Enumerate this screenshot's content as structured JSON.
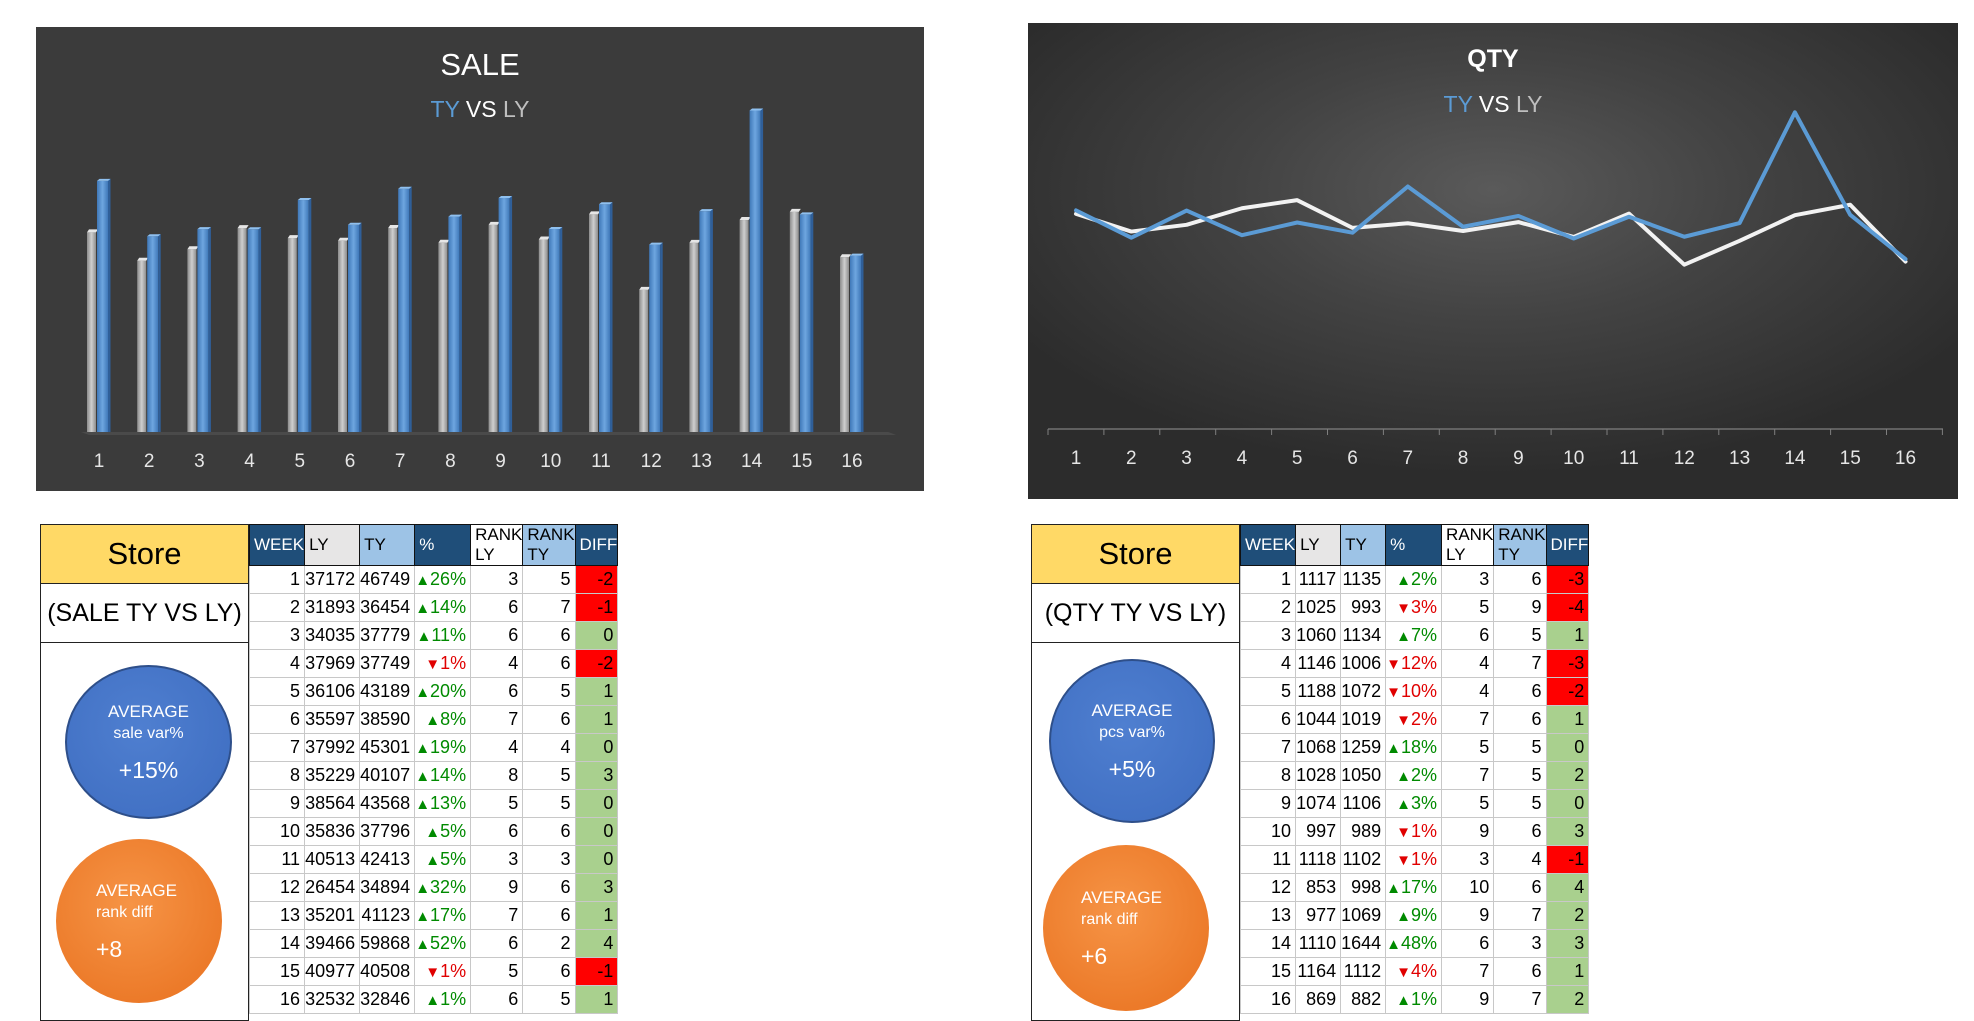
{
  "colors": {
    "ty": "#5b9bd5",
    "ly": "#bfbfbf",
    "qty_ly": "#f2f2f2",
    "diff_negative": "#ff0000",
    "diff_positive": "#a9d08e",
    "pct_up": "#008a00",
    "pct_down": "#e00000"
  },
  "chart_data": [
    {
      "type": "bar",
      "title": "SALE",
      "subtitle_parts": [
        "TY",
        " VS ",
        "LY"
      ],
      "categories": [
        "1",
        "2",
        "3",
        "4",
        "5",
        "6",
        "7",
        "8",
        "9",
        "10",
        "11",
        "12",
        "13",
        "14",
        "15",
        "16"
      ],
      "series": [
        {
          "name": "LY",
          "values": [
            37172,
            31893,
            34035,
            37969,
            36106,
            35597,
            37992,
            35229,
            38564,
            35836,
            40513,
            26454,
            35201,
            39466,
            40977,
            32532
          ]
        },
        {
          "name": "TY",
          "values": [
            46749,
            36454,
            37779,
            37749,
            43189,
            38590,
            45301,
            40107,
            43568,
            37796,
            42413,
            34894,
            41123,
            59868,
            40508,
            32846
          ]
        }
      ],
      "ylim": [
        0,
        62000
      ],
      "grid": false
    },
    {
      "type": "line",
      "title": "QTY",
      "subtitle_parts": [
        "TY",
        " VS ",
        "LY"
      ],
      "categories": [
        "1",
        "2",
        "3",
        "4",
        "5",
        "6",
        "7",
        "8",
        "9",
        "10",
        "11",
        "12",
        "13",
        "14",
        "15",
        "16"
      ],
      "series": [
        {
          "name": "LY",
          "values": [
            1117,
            1025,
            1060,
            1146,
            1188,
            1044,
            1068,
            1028,
            1074,
            997,
            1118,
            853,
            977,
            1110,
            1164,
            869
          ]
        },
        {
          "name": "TY",
          "values": [
            1135,
            993,
            1134,
            1006,
            1072,
            1019,
            1259,
            1050,
            1106,
            989,
            1102,
            998,
            1069,
            1644,
            1112,
            882
          ]
        }
      ],
      "ylim": [
        0,
        1900
      ],
      "grid": false
    }
  ],
  "sale_panel": {
    "store_title": "Store",
    "store_sub": "(SALE TY VS LY)",
    "avg1": {
      "l1": "AVERAGE",
      "l2": "sale var%",
      "value": "+15%"
    },
    "avg2": {
      "l1": "AVERAGE",
      "l2": "rank diff",
      "value": "+8"
    },
    "headers": [
      "WEEK",
      "LY",
      "TY",
      "%",
      "RANK LY",
      "RANK TY",
      "DIFF"
    ],
    "rows": [
      {
        "week": "1",
        "ly": "37172",
        "ty": "46749",
        "dir": "up",
        "pct": "26%",
        "rank_ly": "3",
        "rank_ty": "5",
        "diff": "-2"
      },
      {
        "week": "2",
        "ly": "31893",
        "ty": "36454",
        "dir": "up",
        "pct": "14%",
        "rank_ly": "6",
        "rank_ty": "7",
        "diff": "-1"
      },
      {
        "week": "3",
        "ly": "34035",
        "ty": "37779",
        "dir": "up",
        "pct": "11%",
        "rank_ly": "6",
        "rank_ty": "6",
        "diff": "0"
      },
      {
        "week": "4",
        "ly": "37969",
        "ty": "37749",
        "dir": "down",
        "pct": "1%",
        "rank_ly": "4",
        "rank_ty": "6",
        "diff": "-2"
      },
      {
        "week": "5",
        "ly": "36106",
        "ty": "43189",
        "dir": "up",
        "pct": "20%",
        "rank_ly": "6",
        "rank_ty": "5",
        "diff": "1"
      },
      {
        "week": "6",
        "ly": "35597",
        "ty": "38590",
        "dir": "up",
        "pct": "8%",
        "rank_ly": "7",
        "rank_ty": "6",
        "diff": "1"
      },
      {
        "week": "7",
        "ly": "37992",
        "ty": "45301",
        "dir": "up",
        "pct": "19%",
        "rank_ly": "4",
        "rank_ty": "4",
        "diff": "0"
      },
      {
        "week": "8",
        "ly": "35229",
        "ty": "40107",
        "dir": "up",
        "pct": "14%",
        "rank_ly": "8",
        "rank_ty": "5",
        "diff": "3"
      },
      {
        "week": "9",
        "ly": "38564",
        "ty": "43568",
        "dir": "up",
        "pct": "13%",
        "rank_ly": "5",
        "rank_ty": "5",
        "diff": "0"
      },
      {
        "week": "10",
        "ly": "35836",
        "ty": "37796",
        "dir": "up",
        "pct": "5%",
        "rank_ly": "6",
        "rank_ty": "6",
        "diff": "0"
      },
      {
        "week": "11",
        "ly": "40513",
        "ty": "42413",
        "dir": "up",
        "pct": "5%",
        "rank_ly": "3",
        "rank_ty": "3",
        "diff": "0"
      },
      {
        "week": "12",
        "ly": "26454",
        "ty": "34894",
        "dir": "up",
        "pct": "32%",
        "rank_ly": "9",
        "rank_ty": "6",
        "diff": "3"
      },
      {
        "week": "13",
        "ly": "35201",
        "ty": "41123",
        "dir": "up",
        "pct": "17%",
        "rank_ly": "7",
        "rank_ty": "6",
        "diff": "1"
      },
      {
        "week": "14",
        "ly": "39466",
        "ty": "59868",
        "dir": "up",
        "pct": "52%",
        "rank_ly": "6",
        "rank_ty": "2",
        "diff": "4"
      },
      {
        "week": "15",
        "ly": "40977",
        "ty": "40508",
        "dir": "down",
        "pct": "1%",
        "rank_ly": "5",
        "rank_ty": "6",
        "diff": "-1"
      },
      {
        "week": "16",
        "ly": "32532",
        "ty": "32846",
        "dir": "up",
        "pct": "1%",
        "rank_ly": "6",
        "rank_ty": "5",
        "diff": "1"
      }
    ]
  },
  "qty_panel": {
    "store_title": "Store",
    "store_sub": "(QTY TY VS LY)",
    "avg1": {
      "l1": "AVERAGE",
      "l2": "pcs var%",
      "value": "+5%"
    },
    "avg2": {
      "l1": "AVERAGE",
      "l2": "rank diff",
      "value": "+6"
    },
    "headers": [
      "WEEK",
      "LY",
      "TY",
      "%",
      "RANK LY",
      "RANK TY",
      "DIFF"
    ],
    "rows": [
      {
        "week": "1",
        "ly": "1117",
        "ty": "1135",
        "dir": "up",
        "pct": "2%",
        "rank_ly": "3",
        "rank_ty": "6",
        "diff": "-3"
      },
      {
        "week": "2",
        "ly": "1025",
        "ty": "993",
        "dir": "down",
        "pct": "3%",
        "rank_ly": "5",
        "rank_ty": "9",
        "diff": "-4"
      },
      {
        "week": "3",
        "ly": "1060",
        "ty": "1134",
        "dir": "up",
        "pct": "7%",
        "rank_ly": "6",
        "rank_ty": "5",
        "diff": "1"
      },
      {
        "week": "4",
        "ly": "1146",
        "ty": "1006",
        "dir": "down",
        "pct": "12%",
        "rank_ly": "4",
        "rank_ty": "7",
        "diff": "-3"
      },
      {
        "week": "5",
        "ly": "1188",
        "ty": "1072",
        "dir": "down",
        "pct": "10%",
        "rank_ly": "4",
        "rank_ty": "6",
        "diff": "-2"
      },
      {
        "week": "6",
        "ly": "1044",
        "ty": "1019",
        "dir": "down",
        "pct": "2%",
        "rank_ly": "7",
        "rank_ty": "6",
        "diff": "1"
      },
      {
        "week": "7",
        "ly": "1068",
        "ty": "1259",
        "dir": "up",
        "pct": "18%",
        "rank_ly": "5",
        "rank_ty": "5",
        "diff": "0"
      },
      {
        "week": "8",
        "ly": "1028",
        "ty": "1050",
        "dir": "up",
        "pct": "2%",
        "rank_ly": "7",
        "rank_ty": "5",
        "diff": "2"
      },
      {
        "week": "9",
        "ly": "1074",
        "ty": "1106",
        "dir": "up",
        "pct": "3%",
        "rank_ly": "5",
        "rank_ty": "5",
        "diff": "0"
      },
      {
        "week": "10",
        "ly": "997",
        "ty": "989",
        "dir": "down",
        "pct": "1%",
        "rank_ly": "9",
        "rank_ty": "6",
        "diff": "3"
      },
      {
        "week": "11",
        "ly": "1118",
        "ty": "1102",
        "dir": "down",
        "pct": "1%",
        "rank_ly": "3",
        "rank_ty": "4",
        "diff": "-1"
      },
      {
        "week": "12",
        "ly": "853",
        "ty": "998",
        "dir": "up",
        "pct": "17%",
        "rank_ly": "10",
        "rank_ty": "6",
        "diff": "4"
      },
      {
        "week": "13",
        "ly": "977",
        "ty": "1069",
        "dir": "up",
        "pct": "9%",
        "rank_ly": "9",
        "rank_ty": "7",
        "diff": "2"
      },
      {
        "week": "14",
        "ly": "1110",
        "ty": "1644",
        "dir": "up",
        "pct": "48%",
        "rank_ly": "6",
        "rank_ty": "3",
        "diff": "3"
      },
      {
        "week": "15",
        "ly": "1164",
        "ty": "1112",
        "dir": "down",
        "pct": "4%",
        "rank_ly": "7",
        "rank_ty": "6",
        "diff": "1"
      },
      {
        "week": "16",
        "ly": "869",
        "ty": "882",
        "dir": "up",
        "pct": "1%",
        "rank_ly": "9",
        "rank_ty": "7",
        "diff": "2"
      }
    ]
  }
}
